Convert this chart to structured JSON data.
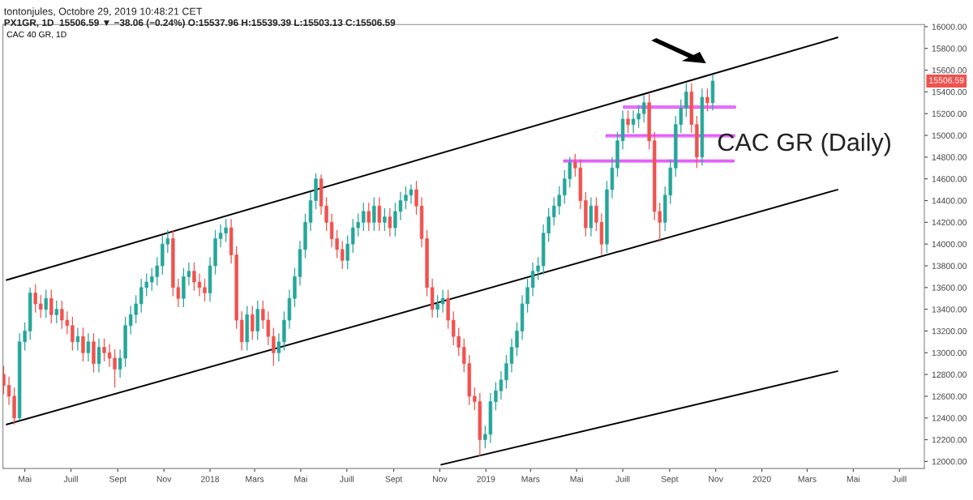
{
  "chart_data": {
    "type": "candlestick",
    "title": "tontonjules, Octobre 29, 2019 10:48:21 CET",
    "subtitle": "PX1GR, 1D  15506.59 ▼ −38.06 (−0.24%) O:15537.96 H:15539.39 L:15503.13 C:15506.59",
    "annotations": [
      "CAC 40 GR, 1D",
      "CAC GR (Daily)",
      "15506.59"
    ],
    "x": [
      "2017-04-03",
      "2017-04-10",
      "2017-04-17",
      "2017-04-24",
      "2017-05-01",
      "2017-05-08",
      "2017-05-15",
      "2017-05-22",
      "2017-05-29",
      "2017-06-05",
      "2017-06-12",
      "2017-06-19",
      "2017-06-26",
      "2017-07-03",
      "2017-07-10",
      "2017-07-17",
      "2017-07-24",
      "2017-07-31",
      "2017-08-07",
      "2017-08-14",
      "2017-08-21",
      "2017-08-28",
      "2017-09-04",
      "2017-09-11",
      "2017-09-18",
      "2017-09-25",
      "2017-10-02",
      "2017-10-09",
      "2017-10-16",
      "2017-10-23",
      "2017-10-30",
      "2017-11-06",
      "2017-11-13",
      "2017-11-20",
      "2017-11-27",
      "2017-12-04",
      "2017-12-11",
      "2017-12-18",
      "2017-12-25",
      "2018-01-01",
      "2018-01-08",
      "2018-01-15",
      "2018-01-22",
      "2018-01-29",
      "2018-02-05",
      "2018-02-12",
      "2018-02-19",
      "2018-02-26",
      "2018-03-05",
      "2018-03-12",
      "2018-03-19",
      "2018-03-26",
      "2018-04-02",
      "2018-04-09",
      "2018-04-16",
      "2018-04-23",
      "2018-04-30",
      "2018-05-07",
      "2018-05-14",
      "2018-05-21",
      "2018-05-28",
      "2018-06-04",
      "2018-06-11",
      "2018-06-18",
      "2018-06-25",
      "2018-07-02",
      "2018-07-09",
      "2018-07-16",
      "2018-07-23",
      "2018-07-30",
      "2018-08-06",
      "2018-08-13",
      "2018-08-20",
      "2018-08-27",
      "2018-09-03",
      "2018-09-10",
      "2018-09-17",
      "2018-09-24",
      "2018-10-01",
      "2018-10-08",
      "2018-10-15",
      "2018-10-22",
      "2018-10-29",
      "2018-11-05",
      "2018-11-12",
      "2018-11-19",
      "2018-11-26",
      "2018-12-03",
      "2018-12-10",
      "2018-12-17",
      "2018-12-24",
      "2018-12-31",
      "2019-01-07",
      "2019-01-14",
      "2019-01-21",
      "2019-01-28",
      "2019-02-04",
      "2019-02-11",
      "2019-02-18",
      "2019-02-25",
      "2019-03-04",
      "2019-03-11",
      "2019-03-18",
      "2019-03-25",
      "2019-04-01",
      "2019-04-08",
      "2019-04-15",
      "2019-04-22",
      "2019-04-29",
      "2019-05-06",
      "2019-05-13",
      "2019-05-20",
      "2019-05-27",
      "2019-06-03",
      "2019-06-10",
      "2019-06-17",
      "2019-06-24",
      "2019-07-01",
      "2019-07-08",
      "2019-07-15",
      "2019-07-22",
      "2019-07-29",
      "2019-08-05",
      "2019-08-12",
      "2019-08-19",
      "2019-08-26",
      "2019-09-02",
      "2019-09-09",
      "2019-09-16",
      "2019-09-23",
      "2019-09-30",
      "2019-10-07",
      "2019-10-14",
      "2019-10-21",
      "2019-10-28"
    ],
    "ohlc": [
      [
        12800,
        12880,
        12620,
        12700
      ],
      [
        12700,
        12780,
        12520,
        12600
      ],
      [
        12600,
        12680,
        12340,
        12400
      ],
      [
        12400,
        13180,
        12380,
        13100
      ],
      [
        13100,
        13280,
        13020,
        13200
      ],
      [
        13200,
        13600,
        13120,
        13550
      ],
      [
        13550,
        13630,
        13370,
        13450
      ],
      [
        13450,
        13530,
        13320,
        13400
      ],
      [
        13400,
        13580,
        13320,
        13500
      ],
      [
        13500,
        13580,
        13270,
        13350
      ],
      [
        13350,
        13480,
        13270,
        13400
      ],
      [
        13400,
        13480,
        13220,
        13300
      ],
      [
        13300,
        13380,
        13170,
        13250
      ],
      [
        13250,
        13330,
        13020,
        13100
      ],
      [
        13100,
        13230,
        13020,
        13150
      ],
      [
        13150,
        13230,
        12920,
        13000
      ],
      [
        13000,
        13180,
        12920,
        13100
      ],
      [
        13100,
        13180,
        12820,
        12900
      ],
      [
        12900,
        13130,
        12820,
        13050
      ],
      [
        13050,
        13130,
        12920,
        13000
      ],
      [
        13000,
        13080,
        12870,
        12950
      ],
      [
        12950,
        13030,
        12680,
        12850
      ],
      [
        12850,
        13030,
        12770,
        12950
      ],
      [
        12950,
        13330,
        12870,
        13250
      ],
      [
        13250,
        13430,
        13170,
        13350
      ],
      [
        13350,
        13530,
        13270,
        13450
      ],
      [
        13450,
        13680,
        13370,
        13600
      ],
      [
        13600,
        13730,
        13520,
        13650
      ],
      [
        13650,
        13780,
        13570,
        13700
      ],
      [
        13700,
        13880,
        13620,
        13800
      ],
      [
        13800,
        14080,
        13720,
        14000
      ],
      [
        14000,
        14130,
        13920,
        14050
      ],
      [
        14050,
        14130,
        13520,
        13600
      ],
      [
        13600,
        13680,
        13420,
        13500
      ],
      [
        13500,
        13780,
        13420,
        13700
      ],
      [
        13700,
        13830,
        13620,
        13750
      ],
      [
        13750,
        13830,
        13570,
        13650
      ],
      [
        13650,
        13730,
        13520,
        13600
      ],
      [
        13600,
        13680,
        13470,
        13550
      ],
      [
        13550,
        13880,
        13470,
        13800
      ],
      [
        13800,
        14130,
        13720,
        14050
      ],
      [
        14050,
        14180,
        13970,
        14100
      ],
      [
        14100,
        14230,
        14020,
        14150
      ],
      [
        14150,
        14230,
        13820,
        13900
      ],
      [
        13900,
        13980,
        13220,
        13300
      ],
      [
        13300,
        13380,
        13020,
        13100
      ],
      [
        13100,
        13430,
        13020,
        13350
      ],
      [
        13350,
        13430,
        13120,
        13200
      ],
      [
        13200,
        13480,
        13120,
        13400
      ],
      [
        13400,
        13480,
        13220,
        13300
      ],
      [
        13300,
        13380,
        13070,
        13150
      ],
      [
        13150,
        13230,
        12880,
        13000
      ],
      [
        13000,
        13180,
        12920,
        13100
      ],
      [
        13100,
        13380,
        13020,
        13300
      ],
      [
        13300,
        13580,
        13220,
        13500
      ],
      [
        13500,
        13780,
        13420,
        13700
      ],
      [
        13700,
        14030,
        13620,
        13950
      ],
      [
        13950,
        14280,
        13870,
        14200
      ],
      [
        14200,
        14480,
        14120,
        14400
      ],
      [
        14400,
        14650,
        14320,
        14600
      ],
      [
        14600,
        14640,
        14270,
        14350
      ],
      [
        14350,
        14430,
        14120,
        14200
      ],
      [
        14200,
        14280,
        13970,
        14050
      ],
      [
        14050,
        14130,
        13870,
        13950
      ],
      [
        13950,
        14030,
        13770,
        13850
      ],
      [
        13850,
        14080,
        13770,
        14000
      ],
      [
        14000,
        14230,
        13920,
        14150
      ],
      [
        14150,
        14280,
        14070,
        14200
      ],
      [
        14200,
        14380,
        14120,
        14300
      ],
      [
        14300,
        14380,
        14120,
        14200
      ],
      [
        14200,
        14430,
        14120,
        14350
      ],
      [
        14350,
        14430,
        14120,
        14200
      ],
      [
        14200,
        14330,
        14120,
        14250
      ],
      [
        14250,
        14330,
        14070,
        14150
      ],
      [
        14150,
        14380,
        14070,
        14300
      ],
      [
        14300,
        14480,
        14220,
        14400
      ],
      [
        14400,
        14530,
        14320,
        14450
      ],
      [
        14450,
        14550,
        14370,
        14500
      ],
      [
        14500,
        14580,
        14270,
        14350
      ],
      [
        14350,
        14430,
        13970,
        14050
      ],
      [
        14050,
        14130,
        13520,
        13600
      ],
      [
        13600,
        13680,
        13320,
        13400
      ],
      [
        13400,
        13530,
        13320,
        13450
      ],
      [
        13450,
        13580,
        13370,
        13500
      ],
      [
        13500,
        13580,
        13220,
        13300
      ],
      [
        13300,
        13380,
        13070,
        13150
      ],
      [
        13150,
        13230,
        12970,
        13050
      ],
      [
        13050,
        13130,
        12820,
        12900
      ],
      [
        12900,
        12980,
        12520,
        12600
      ],
      [
        12600,
        12680,
        12470,
        12550
      ],
      [
        12550,
        12630,
        12050,
        12200
      ],
      [
        12200,
        12330,
        12120,
        12250
      ],
      [
        12250,
        12630,
        12170,
        12550
      ],
      [
        12550,
        12730,
        12470,
        12650
      ],
      [
        12650,
        12830,
        12570,
        12750
      ],
      [
        12750,
        12980,
        12670,
        12900
      ],
      [
        12900,
        13130,
        12820,
        13050
      ],
      [
        13050,
        13280,
        12970,
        13200
      ],
      [
        13200,
        13530,
        13120,
        13450
      ],
      [
        13450,
        13680,
        13370,
        13600
      ],
      [
        13600,
        13830,
        13520,
        13750
      ],
      [
        13750,
        13880,
        13670,
        13800
      ],
      [
        13800,
        14180,
        13720,
        14100
      ],
      [
        14100,
        14330,
        14020,
        14250
      ],
      [
        14250,
        14430,
        14170,
        14350
      ],
      [
        14350,
        14530,
        14270,
        14450
      ],
      [
        14450,
        14680,
        14370,
        14600
      ],
      [
        14600,
        14800,
        14520,
        14750
      ],
      [
        14750,
        14830,
        14620,
        14700
      ],
      [
        14700,
        14780,
        14320,
        14400
      ],
      [
        14400,
        14480,
        14070,
        14150
      ],
      [
        14150,
        14430,
        14070,
        14350
      ],
      [
        14350,
        14430,
        14120,
        14200
      ],
      [
        14200,
        14280,
        13900,
        14000
      ],
      [
        14000,
        14580,
        13920,
        14500
      ],
      [
        14500,
        14800,
        14420,
        14700
      ],
      [
        14700,
        15030,
        14620,
        14950
      ],
      [
        14950,
        15230,
        14870,
        15150
      ],
      [
        15150,
        15230,
        15020,
        15100
      ],
      [
        15100,
        15230,
        15020,
        15150
      ],
      [
        15150,
        15280,
        15070,
        15200
      ],
      [
        15200,
        15370,
        15120,
        15300
      ],
      [
        15300,
        15380,
        14870,
        14950
      ],
      [
        14950,
        15030,
        14220,
        14300
      ],
      [
        14300,
        14380,
        14020,
        14200
      ],
      [
        14200,
        14530,
        14120,
        14450
      ],
      [
        14450,
        14780,
        14370,
        14700
      ],
      [
        14700,
        15180,
        14620,
        15100
      ],
      [
        15100,
        15330,
        15020,
        15250
      ],
      [
        15250,
        15480,
        15170,
        15400
      ],
      [
        15400,
        15480,
        15020,
        15100
      ],
      [
        15100,
        15180,
        14700,
        14800
      ],
      [
        14800,
        15430,
        14720,
        15350
      ],
      [
        15350,
        15430,
        15220,
        15300
      ],
      [
        15300,
        15560,
        15230,
        15500
      ]
    ],
    "colors": [
      "#ef5350",
      "#ef5350",
      "#ef5350",
      "#26a69a",
      "#26a69a",
      "#26a69a",
      "#ef5350",
      "#ef5350",
      "#26a69a",
      "#ef5350",
      "#26a69a",
      "#ef5350",
      "#ef5350",
      "#ef5350",
      "#26a69a",
      "#ef5350",
      "#26a69a",
      "#ef5350",
      "#26a69a",
      "#ef5350",
      "#ef5350",
      "#ef5350",
      "#26a69a",
      "#26a69a",
      "#26a69a",
      "#26a69a",
      "#26a69a",
      "#26a69a",
      "#26a69a",
      "#26a69a",
      "#26a69a",
      "#26a69a",
      "#ef5350",
      "#ef5350",
      "#26a69a",
      "#26a69a",
      "#ef5350",
      "#ef5350",
      "#ef5350",
      "#26a69a",
      "#26a69a",
      "#26a69a",
      "#26a69a",
      "#ef5350",
      "#ef5350",
      "#ef5350",
      "#26a69a",
      "#ef5350",
      "#26a69a",
      "#ef5350",
      "#ef5350",
      "#ef5350",
      "#26a69a",
      "#26a69a",
      "#26a69a",
      "#26a69a",
      "#26a69a",
      "#26a69a",
      "#26a69a",
      "#26a69a",
      "#ef5350",
      "#ef5350",
      "#ef5350",
      "#ef5350",
      "#ef5350",
      "#26a69a",
      "#26a69a",
      "#26a69a",
      "#26a69a",
      "#ef5350",
      "#26a69a",
      "#ef5350",
      "#26a69a",
      "#ef5350",
      "#26a69a",
      "#26a69a",
      "#26a69a",
      "#26a69a",
      "#ef5350",
      "#ef5350",
      "#ef5350",
      "#ef5350",
      "#26a69a",
      "#26a69a",
      "#ef5350",
      "#ef5350",
      "#ef5350",
      "#ef5350",
      "#ef5350",
      "#ef5350",
      "#ef5350",
      "#26a69a",
      "#26a69a",
      "#26a69a",
      "#26a69a",
      "#26a69a",
      "#26a69a",
      "#26a69a",
      "#26a69a",
      "#26a69a",
      "#26a69a",
      "#26a69a",
      "#26a69a",
      "#26a69a",
      "#26a69a",
      "#26a69a",
      "#26a69a",
      "#26a69a",
      "#ef5350",
      "#ef5350",
      "#ef5350",
      "#26a69a",
      "#ef5350",
      "#ef5350",
      "#26a69a",
      "#26a69a",
      "#26a69a",
      "#26a69a",
      "#ef5350",
      "#26a69a",
      "#26a69a",
      "#26a69a",
      "#ef5350",
      "#ef5350",
      "#ef5350",
      "#26a69a",
      "#26a69a",
      "#26a69a",
      "#26a69a",
      "#26a69a",
      "#ef5350",
      "#ef5350",
      "#26a69a",
      "#ef5350",
      "#26a69a"
    ],
    "series": [
      {
        "type": "line",
        "color": "#000000",
        "x": [
          "2017-04-07",
          "2020-04-10"
        ],
        "values": [
          13670,
          15900
        ]
      },
      {
        "type": "line",
        "color": "#000000",
        "x": [
          "2017-04-07",
          "2020-04-10"
        ],
        "values": [
          12340,
          14500
        ]
      },
      {
        "type": "line",
        "color": "#000000",
        "x": [
          "2018-11-03",
          "2020-04-10"
        ],
        "values": [
          11970,
          12830
        ]
      },
      {
        "type": "line",
        "color": "#e040fb",
        "x": [
          "2019-07-02",
          "2019-11-27"
        ],
        "values": [
          15260,
          15260
        ],
        "lower": [
          15250,
          15250
        ],
        "upper": [
          15270,
          15270
        ]
      },
      {
        "type": "line",
        "color": "#e040fb",
        "x": [
          "2019-06-09",
          "2019-11-26"
        ],
        "values": [
          14995,
          14995
        ],
        "lower": [
          14985,
          14985
        ],
        "upper": [
          15005,
          15005
        ]
      },
      {
        "type": "line",
        "color": "#e040fb",
        "x": [
          "2019-04-14",
          "2019-11-25"
        ],
        "values": [
          14765,
          14765
        ],
        "lower": [
          14755,
          14755
        ],
        "upper": [
          14775,
          14775
        ]
      }
    ],
    "xlim": [
      "2017-04-02",
      "2020-08-03"
    ],
    "xticks": [
      {
        "value": "2017-05-01",
        "label": "Mai"
      },
      {
        "value": "2017-07-01",
        "label": "Juill"
      },
      {
        "value": "2017-09-01",
        "label": "Sept"
      },
      {
        "value": "2017-11-01",
        "label": "Nov"
      },
      {
        "value": "2018-01-01",
        "label": "2018"
      },
      {
        "value": "2018-03-01",
        "label": "Mars"
      },
      {
        "value": "2018-05-01",
        "label": "Mai"
      },
      {
        "value": "2018-07-01",
        "label": "Juill"
      },
      {
        "value": "2018-09-01",
        "label": "Sept"
      },
      {
        "value": "2018-11-01",
        "label": "Nov"
      },
      {
        "value": "2019-01-01",
        "label": "2019"
      },
      {
        "value": "2019-03-01",
        "label": "Mars"
      },
      {
        "value": "2019-05-01",
        "label": "Mai"
      },
      {
        "value": "2019-07-01",
        "label": "Juill"
      },
      {
        "value": "2019-09-01",
        "label": "Sept"
      },
      {
        "value": "2019-11-01",
        "label": "Nov"
      },
      {
        "value": "2020-01-01",
        "label": "2020"
      },
      {
        "value": "2020-03-01",
        "label": "Mars"
      },
      {
        "value": "2020-05-01",
        "label": "Mai"
      },
      {
        "value": "2020-07-01",
        "label": "Juill"
      }
    ],
    "ylim": [
      11935,
      16020
    ],
    "yticks": [
      {
        "value": 12000,
        "label": "12000.00"
      },
      {
        "value": 12200,
        "label": "12200.00"
      },
      {
        "value": 12400,
        "label": "12400.00"
      },
      {
        "value": 12600,
        "label": "12600.00"
      },
      {
        "value": 12800,
        "label": "12800.00"
      },
      {
        "value": 13000,
        "label": "13000.00"
      },
      {
        "value": 13200,
        "label": "13200.00"
      },
      {
        "value": 13400,
        "label": "13400.00"
      },
      {
        "value": 13600,
        "label": "13600.00"
      },
      {
        "value": 13800,
        "label": "13800.00"
      },
      {
        "value": 14000,
        "label": "14000.00"
      },
      {
        "value": 14200,
        "label": "14200.00"
      },
      {
        "value": 14400,
        "label": "14400.00"
      },
      {
        "value": 14600,
        "label": "14600.00"
      },
      {
        "value": 14800,
        "label": "14800.00"
      },
      {
        "value": 15000,
        "label": "15000.00"
      },
      {
        "value": 15200,
        "label": "15200.00"
      },
      {
        "value": 15400,
        "label": "15400.00"
      },
      {
        "value": 15600,
        "label": "15600.00"
      },
      {
        "value": 15800,
        "label": "15800.00"
      },
      {
        "value": 16000,
        "label": "16000.00"
      }
    ]
  }
}
